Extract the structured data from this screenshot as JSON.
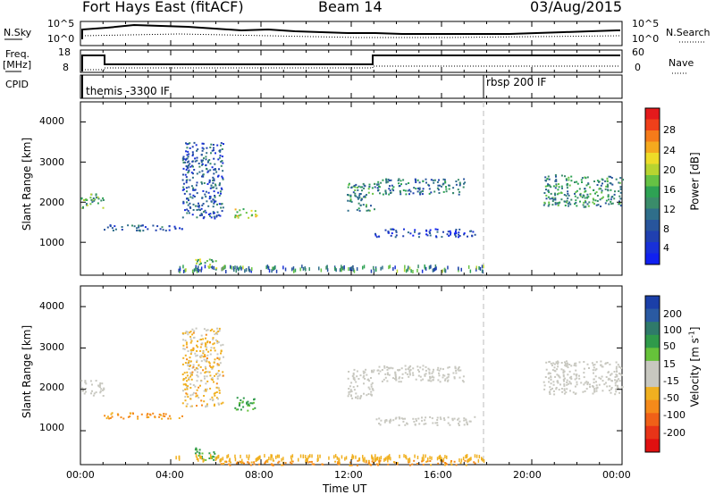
{
  "header": {
    "station": "Fort Hays East (fitACF)",
    "beam": "Beam 14",
    "date": "03/Aug/2015"
  },
  "top_panels": {
    "nsky_label": "N.Sky",
    "nsky_ticks": [
      "10^5",
      "10^0"
    ],
    "nsearch_label": "N.Search",
    "nsearch_ticks": [
      "10^5",
      "10^0"
    ],
    "freq_label": "Freq.",
    "freq_unit": "[MHz]",
    "freq_ticks": [
      "18",
      "8"
    ],
    "nave_label": "Nave",
    "nave_ticks": [
      "60",
      "0"
    ],
    "cpid_label": "CPID",
    "cpid_segments": [
      "themis -3300 IF",
      "rbsp 200 IF"
    ]
  },
  "colorbars": {
    "power": {
      "label": "Power [dB]",
      "ticks": [
        "28",
        "24",
        "20",
        "16",
        "12",
        "8",
        "4"
      ],
      "colors": [
        "#e41a1c",
        "#f0401a",
        "#f57b1a",
        "#f5a91e",
        "#eedc28",
        "#b8d430",
        "#66c244",
        "#2ea254",
        "#3a8c6a",
        "#2f6e8a",
        "#28559c",
        "#2040b0",
        "#1830d8",
        "#1020f0"
      ]
    },
    "velocity": {
      "label": "Velocity [m s",
      "label_sup": "-1",
      "label_end": "]",
      "ticks": [
        "200",
        "100",
        "50",
        "15",
        "-15",
        "-50",
        "-100",
        "-200"
      ],
      "colors": [
        "#1b3fa8",
        "#2a5aa2",
        "#2f7a6a",
        "#2f9a4a",
        "#66c23a",
        "#c8c8c0",
        "#c8c8c0",
        "#f0b020",
        "#f58a1a",
        "#f06018",
        "#e83418",
        "#e01010"
      ]
    }
  },
  "axes": {
    "ylabel": "Slant Range [km]",
    "yticks": [
      "4000",
      "3000",
      "2000",
      "1000"
    ],
    "xticks": [
      "00:00",
      "04:00",
      "08:00",
      "12:00",
      "16:00",
      "20:00",
      "00:00"
    ],
    "xlabel": "Time UT"
  },
  "chart_data": [
    {
      "type": "heatmap",
      "title": "Power",
      "xlim": [
        0,
        24
      ],
      "ylim": [
        180,
        4500
      ],
      "x_unit": "hours UT",
      "y_unit": "km",
      "regions": [
        {
          "x": [
            0.0,
            1.0
          ],
          "y": [
            1850,
            2250
          ],
          "value": 16
        },
        {
          "x": [
            1.0,
            4.5
          ],
          "y": [
            1300,
            1450
          ],
          "value": 10
        },
        {
          "x": [
            4.5,
            6.3
          ],
          "y": [
            1600,
            3500
          ],
          "value": 10
        },
        {
          "x": [
            6.8,
            7.8
          ],
          "y": [
            1600,
            1850
          ],
          "value": 20
        },
        {
          "x": [
            5.0,
            6.0
          ],
          "y": [
            300,
            600
          ],
          "value": 18
        },
        {
          "x": [
            11.8,
            13.0
          ],
          "y": [
            1800,
            2500
          ],
          "value": 14
        },
        {
          "x": [
            13.0,
            17.0
          ],
          "y": [
            2200,
            2600
          ],
          "value": 12
        },
        {
          "x": [
            13.0,
            17.5
          ],
          "y": [
            1150,
            1350
          ],
          "value": 8
        },
        {
          "x": [
            20.5,
            24.0
          ],
          "y": [
            1900,
            2700
          ],
          "value": 14
        }
      ]
    },
    {
      "type": "heatmap",
      "title": "Velocity",
      "xlim": [
        0,
        24
      ],
      "ylim": [
        180,
        4500
      ],
      "x_unit": "hours UT",
      "y_unit": "km",
      "regions": [
        {
          "x": [
            0.0,
            1.0
          ],
          "y": [
            1850,
            2250
          ],
          "value": 0
        },
        {
          "x": [
            1.0,
            4.5
          ],
          "y": [
            1300,
            1450
          ],
          "value": -40
        },
        {
          "x": [
            4.5,
            6.3
          ],
          "y": [
            1600,
            3500
          ],
          "value": -20
        },
        {
          "x": [
            6.8,
            7.8
          ],
          "y": [
            1500,
            1850
          ],
          "value": 40
        },
        {
          "x": [
            5.0,
            6.0
          ],
          "y": [
            300,
            600
          ],
          "value": 40
        },
        {
          "x": [
            6.0,
            17.5
          ],
          "y": [
            180,
            300
          ],
          "value": -40
        },
        {
          "x": [
            11.8,
            13.0
          ],
          "y": [
            1800,
            2500
          ],
          "value": 0
        },
        {
          "x": [
            13.0,
            17.0
          ],
          "y": [
            2200,
            2600
          ],
          "value": 0
        },
        {
          "x": [
            13.0,
            17.5
          ],
          "y": [
            1150,
            1350
          ],
          "value": 0
        },
        {
          "x": [
            20.5,
            24.0
          ],
          "y": [
            1900,
            2700
          ],
          "value": 0
        }
      ]
    }
  ]
}
